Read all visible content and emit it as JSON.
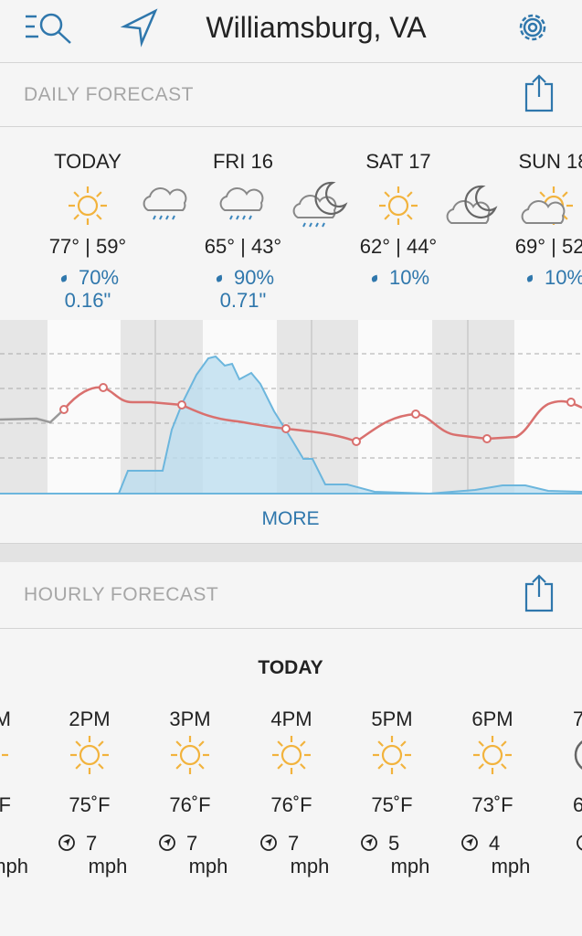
{
  "header": {
    "title": "Williamsburg, VA"
  },
  "daily": {
    "title": "DAILY FORECAST",
    "days": [
      {
        "name": "TODAY",
        "temps": "77° | 59°",
        "precip": "70%",
        "amount": "0.16\""
      },
      {
        "name": "FRI 16",
        "temps": "65° | 43°",
        "precip": "90%",
        "amount": "0.71\""
      },
      {
        "name": "SAT 17",
        "temps": "62° | 44°",
        "precip": "10%"
      },
      {
        "name": "SUN 18",
        "temps": "69° | 52°",
        "precip": "10%"
      }
    ],
    "more": "MORE"
  },
  "hourly": {
    "title": "HOURLY FORECAST",
    "day": "TODAY",
    "hours": [
      {
        "time": "M",
        "temp": "F",
        "speed": "mph"
      },
      {
        "time": "2PM",
        "temp": "75˚F",
        "wind": "7",
        "speed": "mph"
      },
      {
        "time": "3PM",
        "temp": "76˚F",
        "wind": "7",
        "speed": "mph"
      },
      {
        "time": "4PM",
        "temp": "76˚F",
        "wind": "7",
        "speed": "mph"
      },
      {
        "time": "5PM",
        "temp": "75˚F",
        "wind": "5",
        "speed": "mph"
      },
      {
        "time": "6PM",
        "temp": "73˚F",
        "wind": "4",
        "speed": "mph"
      },
      {
        "time": "7",
        "temp": "6"
      }
    ]
  }
}
